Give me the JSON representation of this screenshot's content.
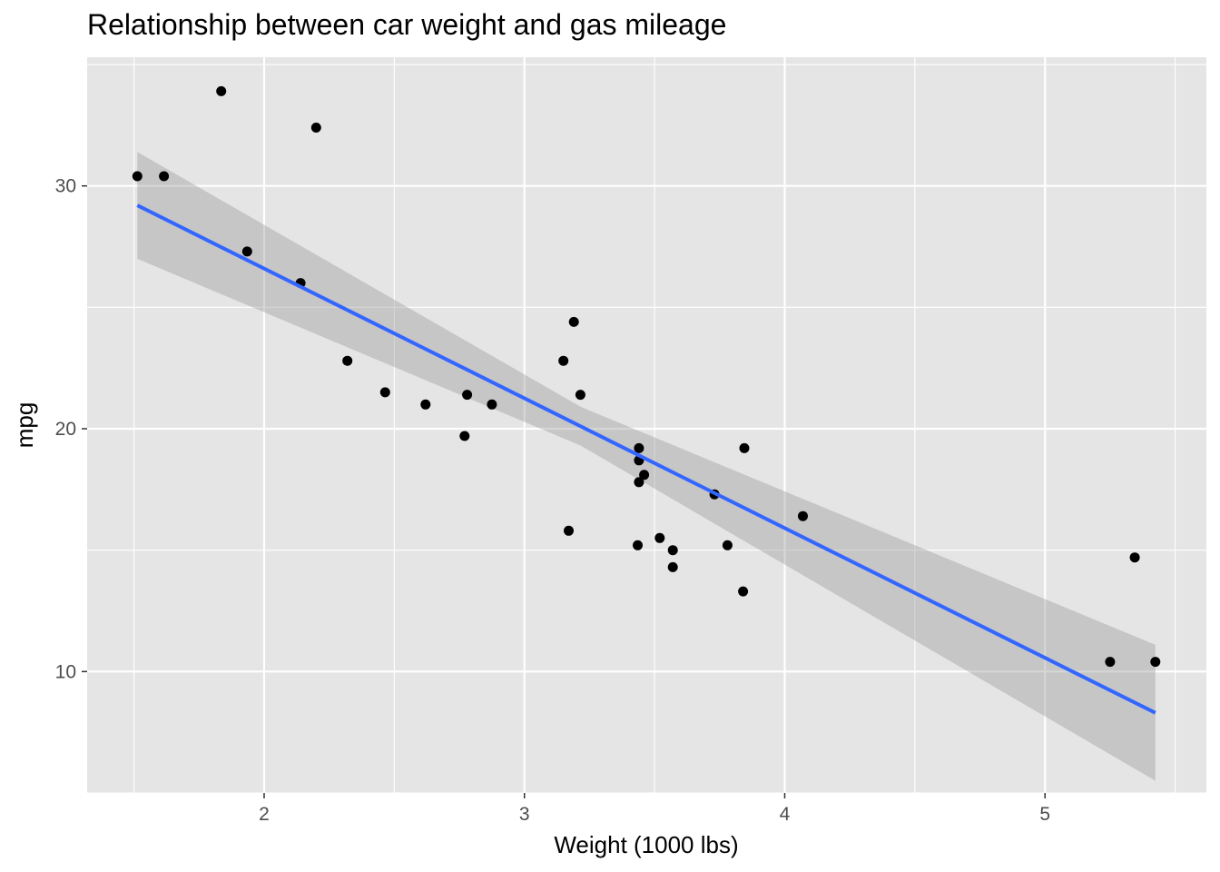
{
  "chart_data": {
    "type": "scatter",
    "title": "Relationship between car weight and gas mileage",
    "xlabel": "Weight (1000 lbs)",
    "ylabel": "mpg",
    "xlim": [
      1.32,
      5.62
    ],
    "ylim": [
      5.0,
      35.3
    ],
    "x_ticks": [
      2,
      3,
      4,
      5
    ],
    "x_minor_ticks": [
      1.5,
      2.5,
      3.5,
      4.5,
      5.5
    ],
    "y_ticks": [
      10,
      20,
      30
    ],
    "y_minor_ticks": [
      5,
      15,
      25,
      35
    ],
    "grid": true,
    "points": {
      "x": [
        2.62,
        2.875,
        2.32,
        3.215,
        3.44,
        3.46,
        3.57,
        3.19,
        3.15,
        3.44,
        3.44,
        4.07,
        3.73,
        3.78,
        5.25,
        5.424,
        5.345,
        2.2,
        1.615,
        1.835,
        2.465,
        3.52,
        3.435,
        3.84,
        3.845,
        1.935,
        2.14,
        1.513,
        3.17,
        2.77,
        3.57,
        2.78
      ],
      "y": [
        21.0,
        21.0,
        22.8,
        21.4,
        18.7,
        18.1,
        14.3,
        24.4,
        22.8,
        19.2,
        17.8,
        16.4,
        17.3,
        15.2,
        10.4,
        10.4,
        14.7,
        32.4,
        30.4,
        33.9,
        21.5,
        15.5,
        15.2,
        13.3,
        19.2,
        27.3,
        26.0,
        30.4,
        15.8,
        19.7,
        15.0,
        21.4
      ],
      "color": "#000000"
    },
    "regression": {
      "method": "lm",
      "x_start": 1.513,
      "x_end": 5.424,
      "intercept": 37.285,
      "slope": -5.344,
      "se_ribbon": {
        "x": [
          1.513,
          3.217,
          5.424
        ],
        "lower": [
          27.0,
          19.3,
          5.5
        ],
        "upper": [
          31.4,
          20.9,
          11.1
        ]
      },
      "line_color": "#3366FF",
      "ribbon_color": "#999999"
    },
    "panel_color": "#e5e5e5",
    "grid_color": "#ffffff"
  }
}
